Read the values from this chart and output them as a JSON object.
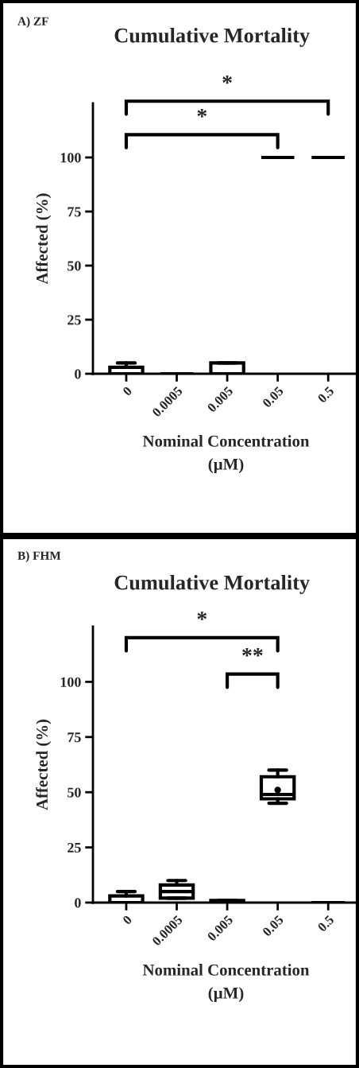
{
  "chart_data": [
    {
      "type": "box",
      "title": "Cumulative Mortality",
      "ylabel": "Affected (%)",
      "xlabel": "Nominal Concentration\n(µM)",
      "categories": [
        "0",
        "0.0005",
        "0.005",
        "0.05",
        "0.5"
      ],
      "boxes": [
        {
          "low": 0,
          "q1": 0,
          "median": 0,
          "q3": 3,
          "high": 5
        },
        {
          "low": 0,
          "q1": 0,
          "median": 0,
          "q3": 0,
          "high": 0
        },
        {
          "low": 0,
          "q1": 0,
          "median": 0,
          "q3": 5,
          "high": 5
        },
        {
          "low": 100,
          "q1": 100,
          "median": 100,
          "q3": 100,
          "high": 100
        },
        {
          "low": 100,
          "q1": 100,
          "median": 100,
          "q3": 100,
          "high": 100
        }
      ],
      "ylim": [
        0,
        125
      ],
      "yticks": [
        0,
        25,
        50,
        75,
        100
      ],
      "annotations": [
        "A) ZF",
        "*",
        "*"
      ]
    },
    {
      "type": "box",
      "title": "Cumulative Mortality",
      "ylabel": "Affected (%)",
      "xlabel": "Nominal Concentration\n(µM)",
      "categories": [
        "0",
        "0.0005",
        "0.005",
        "0.05",
        "0.5"
      ],
      "boxes": [
        {
          "low": 0,
          "q1": 0,
          "median": 0,
          "q3": 3,
          "high": 5
        },
        {
          "low": 2,
          "q1": 2,
          "median": 5,
          "q3": 8,
          "high": 10
        },
        {
          "low": 0,
          "q1": 0,
          "median": 0,
          "q3": 1,
          "high": 1
        },
        {
          "low": 45,
          "q1": 47,
          "median": 49,
          "q3": 57,
          "high": 60,
          "mean": 51
        },
        {
          "low": 0,
          "q1": 0,
          "median": 0,
          "q3": 0,
          "high": 0
        }
      ],
      "ylim": [
        0,
        125
      ],
      "yticks": [
        0,
        25,
        50,
        75,
        100
      ],
      "annotations": [
        "B) FHM",
        "*",
        "**"
      ]
    }
  ]
}
